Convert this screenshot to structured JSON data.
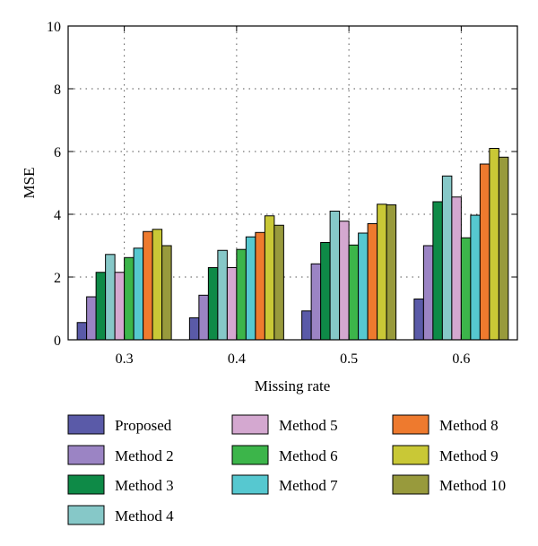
{
  "chart_data": {
    "type": "bar",
    "xlabel": "Missing rate",
    "ylabel": "MSE",
    "ylim": [
      0,
      10
    ],
    "yticks": [
      0,
      2,
      4,
      6,
      8,
      10
    ],
    "categories": [
      "0.3",
      "0.4",
      "0.5",
      "0.6"
    ],
    "grid": "dotted",
    "legend_position": "bottom",
    "series": [
      {
        "name": "Proposed",
        "color": "#5a5aa8",
        "values": [
          0.55,
          0.7,
          0.92,
          1.3
        ]
      },
      {
        "name": "Method 2",
        "color": "#9b84c4",
        "values": [
          1.37,
          1.42,
          2.42,
          3.0
        ]
      },
      {
        "name": "Method 3",
        "color": "#0e8a47",
        "values": [
          2.15,
          2.3,
          3.1,
          4.4
        ]
      },
      {
        "name": "Method 4",
        "color": "#86c8c8",
        "values": [
          2.72,
          2.85,
          4.1,
          5.22
        ]
      },
      {
        "name": "Method 5",
        "color": "#d4a8d0",
        "values": [
          2.15,
          2.3,
          3.78,
          4.55
        ]
      },
      {
        "name": "Method 6",
        "color": "#3cb54a",
        "values": [
          2.62,
          2.88,
          3.02,
          3.25
        ]
      },
      {
        "name": "Method 7",
        "color": "#56c8d0",
        "values": [
          2.92,
          3.28,
          3.4,
          3.97
        ]
      },
      {
        "name": "Method 8",
        "color": "#ee7a2e",
        "values": [
          3.45,
          3.42,
          3.7,
          5.6
        ]
      },
      {
        "name": "Method 9",
        "color": "#c9c836",
        "values": [
          3.52,
          3.95,
          4.32,
          6.1
        ]
      },
      {
        "name": "Method 10",
        "color": "#989a3c",
        "values": [
          3.0,
          3.65,
          4.3,
          5.82
        ]
      }
    ]
  }
}
